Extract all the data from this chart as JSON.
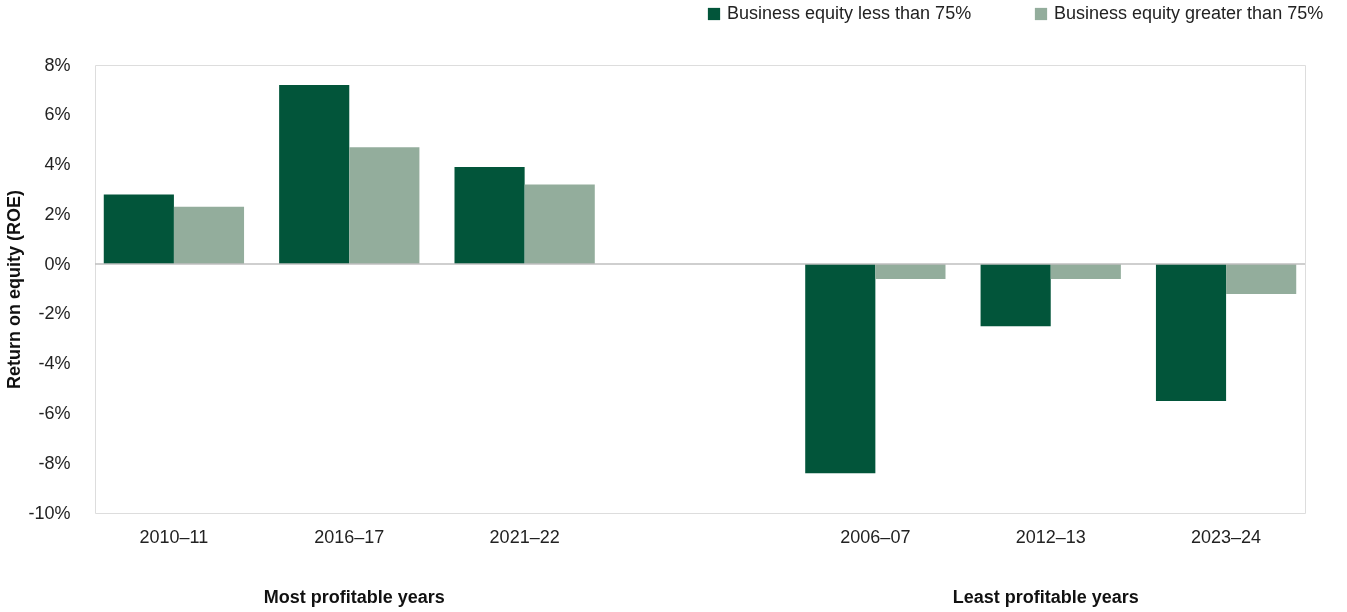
{
  "chart_data": {
    "type": "bar",
    "ylabel": "Return on equity (ROE)",
    "categories": [
      "2010–11",
      "2016–17",
      "2021–22",
      null,
      "2006–07",
      "2012–13",
      "2023–24"
    ],
    "series": [
      {
        "name": "Business equity less than 75%",
        "color": "#02553a",
        "values": [
          2.8,
          7.2,
          3.9,
          null,
          -8.4,
          -2.5,
          -5.5
        ]
      },
      {
        "name": "Business equity greater than 75%",
        "color": "#93ad9c",
        "values": [
          2.3,
          4.7,
          3.2,
          null,
          -0.6,
          -0.6,
          -1.2
        ]
      }
    ],
    "ylim": [
      -10,
      8
    ],
    "yticks": [
      {
        "value": -10,
        "label": "-10%"
      },
      {
        "value": -8,
        "label": "-8%"
      },
      {
        "value": -6,
        "label": "-6%"
      },
      {
        "value": -4,
        "label": "-4%"
      },
      {
        "value": -2,
        "label": "-2%"
      },
      {
        "value": 0,
        "label": "0%"
      },
      {
        "value": 2,
        "label": "2%"
      },
      {
        "value": 4,
        "label": "4%"
      },
      {
        "value": 6,
        "label": "6%"
      },
      {
        "value": 8,
        "label": "8%"
      }
    ],
    "ref_lines": [
      {
        "axis": "y",
        "value": 0,
        "color": "#bfbfbf"
      }
    ],
    "annotations": [
      "Most profitable years",
      "Least profitable years"
    ],
    "grid": false,
    "legend": "top right"
  }
}
